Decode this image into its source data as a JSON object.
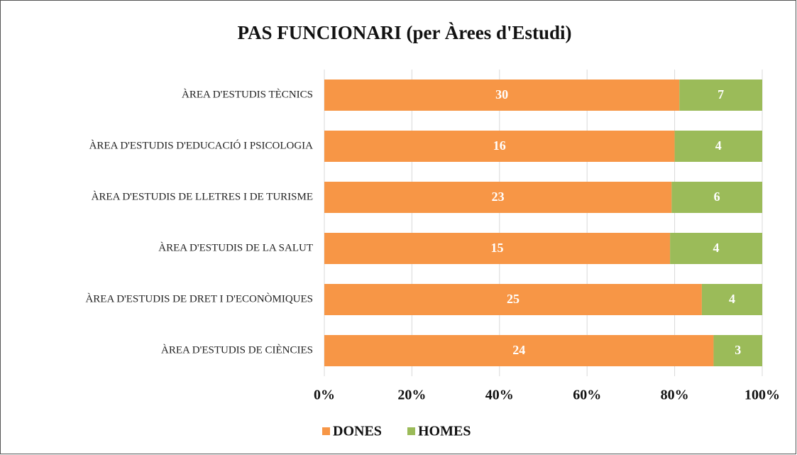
{
  "chart_data": {
    "type": "stacked-bar-100",
    "title": "PAS FUNCIONARI (per Àrees d'Estudi)",
    "categories": [
      "ÀREA D'ESTUDIS TÈCNICS",
      "ÀREA D'ESTUDIS D'EDUCACIÓ I PSICOLOGIA",
      "ÀREA D'ESTUDIS DE LLETRES I DE TURISME",
      "ÀREA D'ESTUDIS DE LA SALUT",
      "ÀREA D'ESTUDIS DE DRET I D'ECONÒMIQUES",
      "ÀREA D'ESTUDIS DE CIÈNCIES"
    ],
    "series": [
      {
        "name": "DONES",
        "color": "#f79646",
        "values": [
          30,
          16,
          23,
          15,
          25,
          24
        ]
      },
      {
        "name": "HOMES",
        "color": "#9bbb59",
        "values": [
          7,
          4,
          6,
          4,
          4,
          3
        ]
      }
    ],
    "xlim": [
      0,
      100
    ],
    "xticks": [
      {
        "value": 0,
        "label": "0%"
      },
      {
        "value": 20,
        "label": "20%"
      },
      {
        "value": 40,
        "label": "40%"
      },
      {
        "value": 60,
        "label": "60%"
      },
      {
        "value": 80,
        "label": "80%"
      },
      {
        "value": 100,
        "label": "100%"
      }
    ],
    "grid": true,
    "legend": "bottom"
  }
}
